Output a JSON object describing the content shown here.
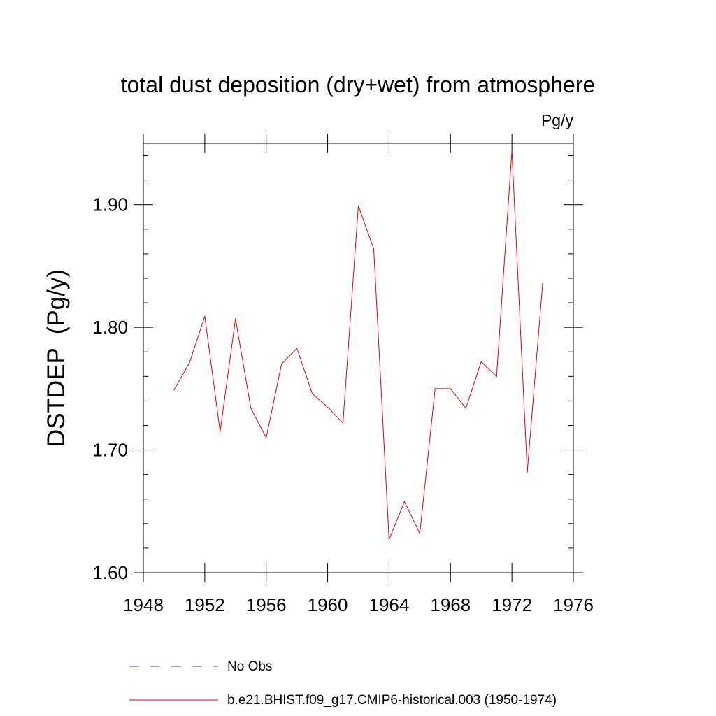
{
  "chart_data": {
    "type": "line",
    "title": "total dust deposition (dry+wet) from atmosphere",
    "units_label": "Pg/y",
    "ylabel": "DSTDEP  (Pg/y)",
    "xlabel": "",
    "xlim": [
      1948,
      1976
    ],
    "ylim": [
      1.6,
      1.95
    ],
    "xticks": [
      1948,
      1952,
      1956,
      1960,
      1964,
      1968,
      1972,
      1976
    ],
    "xtick_labels": [
      "1948",
      "1952",
      "1956",
      "1960",
      "1964",
      "1968",
      "1972",
      "1976"
    ],
    "yticks": [
      1.6,
      1.7,
      1.8,
      1.9
    ],
    "ytick_labels": [
      "1.60",
      "1.70",
      "1.80",
      "1.90"
    ],
    "grid": false,
    "legend_position": "bottom",
    "series": [
      {
        "name": "b.e21.BHIST.f09_g17.CMIP6-historical.003 (1950-1974)",
        "color": "#e8000b",
        "style": "solid",
        "x": [
          1950,
          1951,
          1952,
          1953,
          1954,
          1955,
          1956,
          1957,
          1958,
          1959,
          1960,
          1961,
          1962,
          1963,
          1964,
          1965,
          1966,
          1967,
          1968,
          1969,
          1970,
          1971,
          1972,
          1973,
          1974
        ],
        "y": [
          1.749,
          1.771,
          1.809,
          1.715,
          1.807,
          1.734,
          1.71,
          1.77,
          1.783,
          1.746,
          1.735,
          1.722,
          1.899,
          1.864,
          1.627,
          1.658,
          1.632,
          1.75,
          1.75,
          1.734,
          1.772,
          1.76,
          1.944,
          1.682,
          1.836
        ]
      }
    ],
    "legend": [
      {
        "label": "No Obs",
        "color": "#4a3fa0",
        "style": "dashed"
      },
      {
        "label": "b.e21.BHIST.f09_g17.CMIP6-historical.003 (1950-1974)",
        "color": "#e8000b",
        "style": "solid"
      }
    ]
  }
}
